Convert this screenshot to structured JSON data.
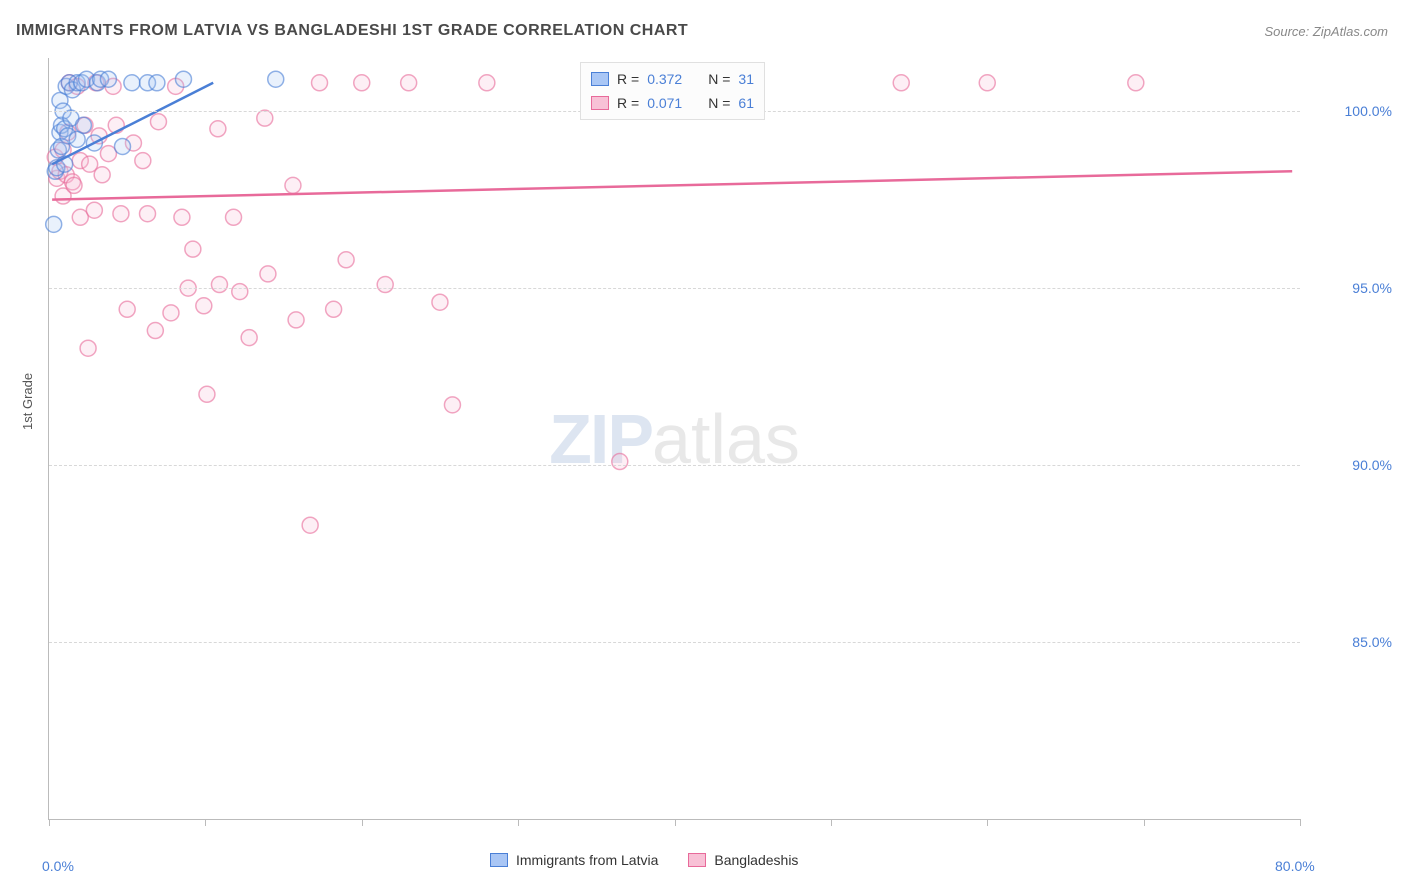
{
  "title": "IMMIGRANTS FROM LATVIA VS BANGLADESHI 1ST GRADE CORRELATION CHART",
  "source": "Source: ZipAtlas.com",
  "ylabel": "1st Grade",
  "watermark": {
    "bold": "ZIP",
    "light": "atlas"
  },
  "chart": {
    "type": "scatter",
    "background_color": "#ffffff",
    "grid_color": "#d8d8d8",
    "axis_color": "#bbbbbb",
    "text_color": "#555555",
    "tick_label_color": "#4a7fd6",
    "xlim": [
      0,
      80
    ],
    "ylim": [
      80,
      101.5
    ],
    "x_ticks": [
      0,
      10,
      20,
      30,
      40,
      50,
      60,
      70,
      80
    ],
    "x_tick_labels": {
      "0": "0.0%",
      "80": "80.0%"
    },
    "y_ticks": [
      85,
      90,
      95,
      100
    ],
    "y_tick_labels": {
      "85": "85.0%",
      "90": "90.0%",
      "95": "95.0%",
      "100": "100.0%"
    },
    "marker_radius": 8,
    "marker_stroke_width": 1.5,
    "marker_fill_opacity": 0.25,
    "line_width": 2.5,
    "series": [
      {
        "name": "Immigants from Latvia",
        "legend_label": "Immigrants from Latvia",
        "color": "#4a7fd6",
        "fill": "#a9c6f5",
        "R": "0.372",
        "N": "31",
        "trend": {
          "x1": 0.2,
          "y1": 98.5,
          "x2": 10.5,
          "y2": 100.8
        },
        "points": [
          [
            0.3,
            96.8
          ],
          [
            0.4,
            98.3
          ],
          [
            0.5,
            98.4
          ],
          [
            0.6,
            98.9
          ],
          [
            0.7,
            99.4
          ],
          [
            0.7,
            100.3
          ],
          [
            0.8,
            99.0
          ],
          [
            0.8,
            99.6
          ],
          [
            0.9,
            100.0
          ],
          [
            1.0,
            98.5
          ],
          [
            1.0,
            99.5
          ],
          [
            1.1,
            100.7
          ],
          [
            1.2,
            99.3
          ],
          [
            1.3,
            100.8
          ],
          [
            1.4,
            99.8
          ],
          [
            1.5,
            100.6
          ],
          [
            1.8,
            99.2
          ],
          [
            1.8,
            100.8
          ],
          [
            2.1,
            100.8
          ],
          [
            2.2,
            99.6
          ],
          [
            2.4,
            100.9
          ],
          [
            2.9,
            99.1
          ],
          [
            3.1,
            100.8
          ],
          [
            3.3,
            100.9
          ],
          [
            3.8,
            100.9
          ],
          [
            4.7,
            99.0
          ],
          [
            5.3,
            100.8
          ],
          [
            6.3,
            100.8
          ],
          [
            6.9,
            100.8
          ],
          [
            8.6,
            100.9
          ],
          [
            14.5,
            100.9
          ]
        ]
      },
      {
        "name": "Bangladeshis",
        "legend_label": "Bangladeshis",
        "color": "#e86a9a",
        "fill": "#f8c1d6",
        "R": "0.071",
        "N": "61",
        "trend": {
          "x1": 0.2,
          "y1": 97.5,
          "x2": 79.5,
          "y2": 98.3
        },
        "points": [
          [
            0.4,
            98.7
          ],
          [
            0.5,
            98.1
          ],
          [
            0.7,
            98.3
          ],
          [
            0.9,
            97.6
          ],
          [
            0.9,
            98.9
          ],
          [
            1.1,
            98.2
          ],
          [
            1.2,
            99.4
          ],
          [
            1.3,
            100.8
          ],
          [
            1.5,
            98.0
          ],
          [
            1.6,
            97.9
          ],
          [
            1.8,
            100.7
          ],
          [
            2.0,
            97.0
          ],
          [
            2.0,
            98.6
          ],
          [
            2.3,
            99.6
          ],
          [
            2.5,
            93.3
          ],
          [
            2.6,
            98.5
          ],
          [
            2.9,
            97.2
          ],
          [
            3.0,
            100.8
          ],
          [
            3.2,
            99.3
          ],
          [
            3.4,
            98.2
          ],
          [
            3.8,
            98.8
          ],
          [
            4.1,
            100.7
          ],
          [
            4.3,
            99.6
          ],
          [
            4.6,
            97.1
          ],
          [
            5.0,
            94.4
          ],
          [
            5.4,
            99.1
          ],
          [
            6.0,
            98.6
          ],
          [
            6.3,
            97.1
          ],
          [
            6.8,
            93.8
          ],
          [
            7.0,
            99.7
          ],
          [
            7.8,
            94.3
          ],
          [
            8.1,
            100.7
          ],
          [
            8.5,
            97.0
          ],
          [
            8.9,
            95.0
          ],
          [
            9.2,
            96.1
          ],
          [
            9.9,
            94.5
          ],
          [
            10.1,
            92.0
          ],
          [
            10.8,
            99.5
          ],
          [
            10.9,
            95.1
          ],
          [
            11.8,
            97.0
          ],
          [
            12.2,
            94.9
          ],
          [
            12.8,
            93.6
          ],
          [
            13.8,
            99.8
          ],
          [
            14.0,
            95.4
          ],
          [
            15.6,
            97.9
          ],
          [
            15.8,
            94.1
          ],
          [
            16.7,
            88.3
          ],
          [
            17.3,
            100.8
          ],
          [
            18.2,
            94.4
          ],
          [
            19.0,
            95.8
          ],
          [
            20.0,
            100.8
          ],
          [
            21.5,
            95.1
          ],
          [
            23.0,
            100.8
          ],
          [
            25.0,
            94.6
          ],
          [
            25.8,
            91.7
          ],
          [
            28.0,
            100.8
          ],
          [
            36.5,
            90.1
          ],
          [
            40.0,
            100.8
          ],
          [
            54.5,
            100.8
          ],
          [
            60.0,
            100.8
          ],
          [
            69.5,
            100.8
          ]
        ]
      }
    ]
  },
  "legend_top": {
    "rows": [
      {
        "swatch_fill": "#a9c6f5",
        "swatch_border": "#4a7fd6",
        "r_label": "R = ",
        "r_val": "0.372",
        "n_label": "N = ",
        "n_val": "31"
      },
      {
        "swatch_fill": "#f8c1d6",
        "swatch_border": "#e86a9a",
        "r_label": "R = ",
        "r_val": "0.071",
        "n_label": "N = ",
        "n_val": "61"
      }
    ]
  },
  "legend_bottom": {
    "items": [
      {
        "swatch_fill": "#a9c6f5",
        "swatch_border": "#4a7fd6",
        "label": "Immigrants from Latvia"
      },
      {
        "swatch_fill": "#f8c1d6",
        "swatch_border": "#e86a9a",
        "label": "Bangladeshis"
      }
    ]
  }
}
